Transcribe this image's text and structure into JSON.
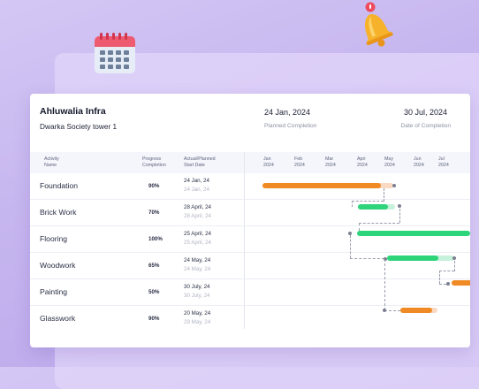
{
  "project": {
    "name": "Ahluwalia Infra",
    "site": "Dwarka Society tower 1",
    "planned_completion_date": "24 Jan, 2024",
    "planned_completion_label": "Planned Completion",
    "completion_date": "30 Jul, 2024",
    "completion_label": "Date of Completion"
  },
  "table": {
    "col_activity": [
      "Activity",
      "Name"
    ],
    "col_progress": [
      "Progress",
      "Completion"
    ],
    "col_dates": [
      "Actual/Planned",
      "Start Date"
    ],
    "months": [
      {
        "m": "Jan",
        "y": "2024"
      },
      {
        "m": "Feb",
        "y": "2024"
      },
      {
        "m": "Mar",
        "y": "2024"
      },
      {
        "m": "Apri",
        "y": "2024"
      },
      {
        "m": "May",
        "y": "2024"
      },
      {
        "m": "Jun",
        "y": "2024"
      },
      {
        "m": "Jul",
        "y": "2024"
      }
    ],
    "rows": [
      {
        "name": "Foundation",
        "progress": "90%",
        "actual": "24 Jan, 24",
        "planned": "24 Jan, 24"
      },
      {
        "name": "Brick Work",
        "progress": "70%",
        "actual": "28 April, 24",
        "planned": "28 April, 24"
      },
      {
        "name": "Flooring",
        "progress": "100%",
        "actual": "25 April, 24",
        "planned": "25 April, 24"
      },
      {
        "name": "Woodwork",
        "progress": "65%",
        "actual": "24 May, 24",
        "planned": "24 May, 24"
      },
      {
        "name": "Painting",
        "progress": "50%",
        "actual": "30 July, 24",
        "planned": "30 July, 24"
      },
      {
        "name": "Glasswork",
        "progress": "90%",
        "actual": "20 May, 24",
        "planned": "29 May, 24"
      }
    ]
  },
  "colors": {
    "accent_orange": "#f08a24",
    "accent_green": "#2ed47a",
    "background": "#c6b6ef"
  },
  "icons": {
    "calendar": "calendar-icon",
    "bell": "notification-bell-icon"
  }
}
